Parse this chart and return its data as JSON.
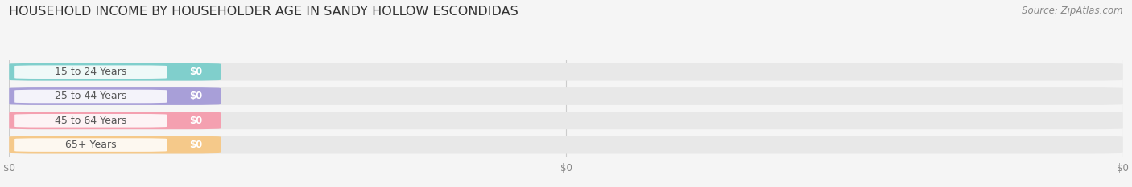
{
  "title": "HOUSEHOLD INCOME BY HOUSEHOLDER AGE IN SANDY HOLLOW ESCONDIDAS",
  "source": "Source: ZipAtlas.com",
  "categories": [
    "15 to 24 Years",
    "25 to 44 Years",
    "45 to 64 Years",
    "65+ Years"
  ],
  "values": [
    0,
    0,
    0,
    0
  ],
  "bar_colors": [
    "#80cfcc",
    "#a89fd8",
    "#f4a0b0",
    "#f5c98a"
  ],
  "bar_bg_color": "#e8e8e8",
  "background_color": "#f5f5f5",
  "title_fontsize": 11.5,
  "source_fontsize": 8.5,
  "label_fontsize": 9,
  "tick_fontsize": 8.5,
  "bar_value_label": "$0",
  "xlim_max": 1.0,
  "n_xticks": 3,
  "xtick_positions": [
    0,
    0.5,
    1.0
  ],
  "xtick_labels": [
    "$0",
    "$0",
    "$0"
  ]
}
